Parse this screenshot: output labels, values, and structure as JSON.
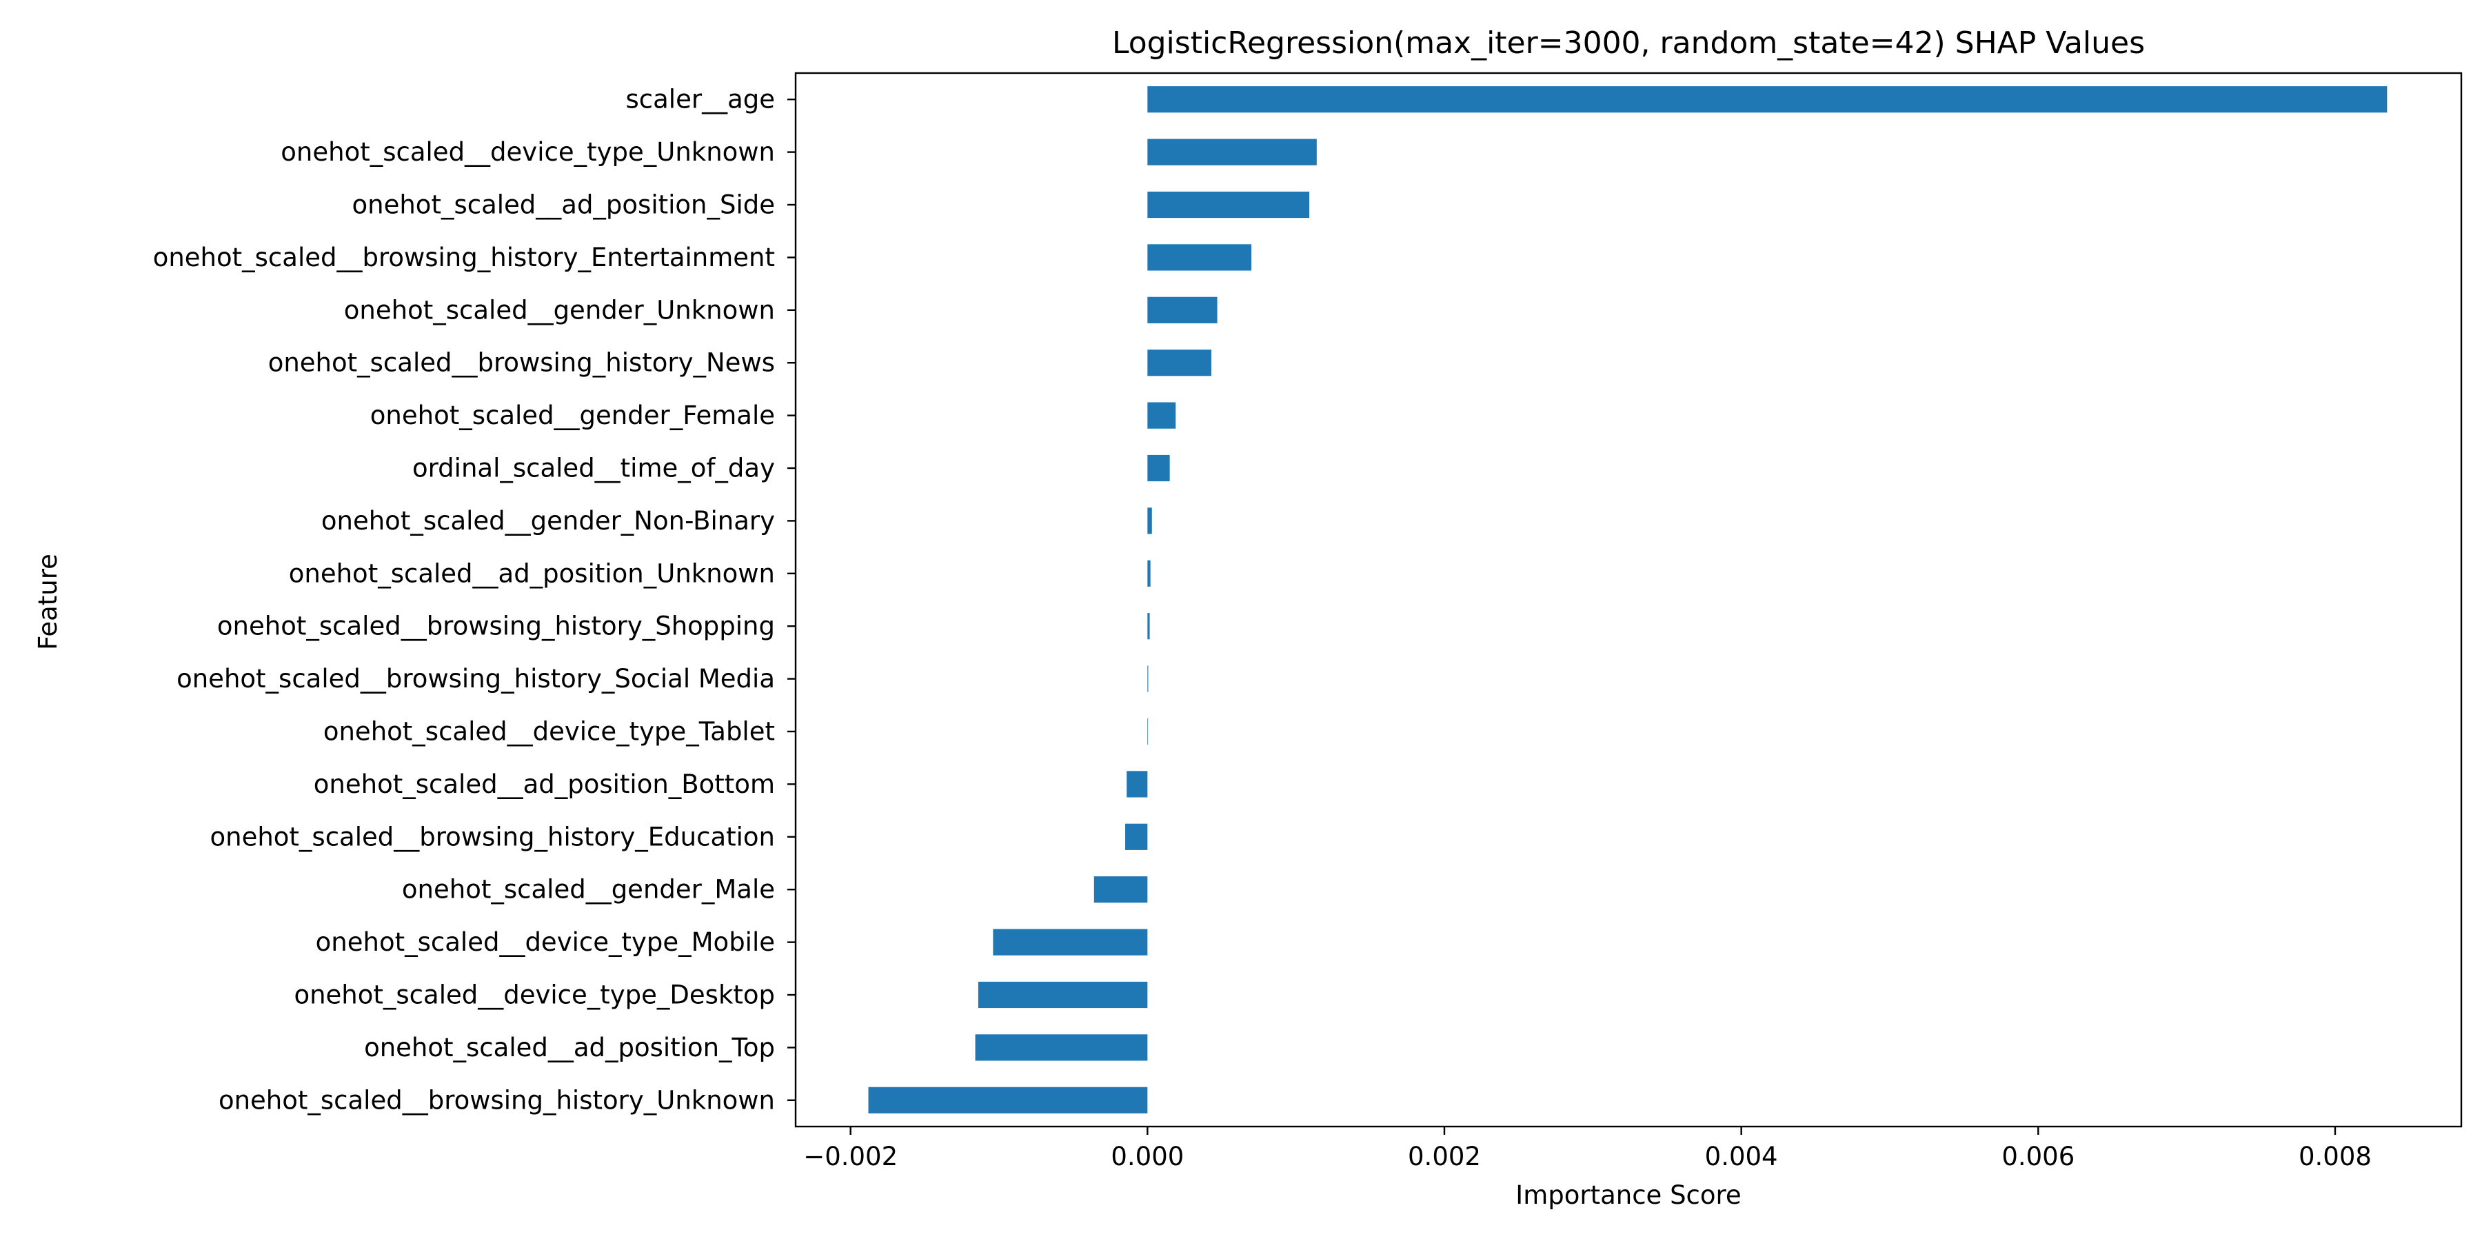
{
  "chart_data": {
    "type": "bar",
    "orientation": "horizontal",
    "title": "LogisticRegression(max_iter=3000, random_state=42) SHAP Values",
    "xlabel": "Importance Score",
    "ylabel": "Feature",
    "xlim": [
      -0.00237,
      0.00885
    ],
    "xticks": [
      -0.002,
      0.0,
      0.002,
      0.004,
      0.006,
      0.008
    ],
    "xtick_labels": [
      "−0.002",
      "0.000",
      "0.002",
      "0.004",
      "0.006",
      "0.008"
    ],
    "grid": false,
    "bar_color": "#1f77b4",
    "categories": [
      "scaler__age",
      "onehot_scaled__device_type_Unknown",
      "onehot_scaled__ad_position_Side",
      "onehot_scaled__browsing_history_Entertainment",
      "onehot_scaled__gender_Unknown",
      "onehot_scaled__browsing_history_News",
      "onehot_scaled__gender_Female",
      "ordinal_scaled__time_of_day",
      "onehot_scaled__gender_Non-Binary",
      "onehot_scaled__ad_position_Unknown",
      "onehot_scaled__browsing_history_Shopping",
      "onehot_scaled__browsing_history_Social Media",
      "onehot_scaled__device_type_Tablet",
      "onehot_scaled__ad_position_Bottom",
      "onehot_scaled__browsing_history_Education",
      "onehot_scaled__gender_Male",
      "onehot_scaled__device_type_Mobile",
      "onehot_scaled__device_type_Desktop",
      "onehot_scaled__ad_position_Top",
      "onehot_scaled__browsing_history_Unknown"
    ],
    "values": [
      0.00835,
      0.00114,
      0.00109,
      0.0007,
      0.00047,
      0.00043,
      0.00019,
      0.00015,
      3e-05,
      2e-05,
      1.5e-05,
      5e-06,
      3e-06,
      -0.00014,
      -0.00015,
      -0.00036,
      -0.00104,
      -0.00114,
      -0.00116,
      -0.00188
    ]
  }
}
